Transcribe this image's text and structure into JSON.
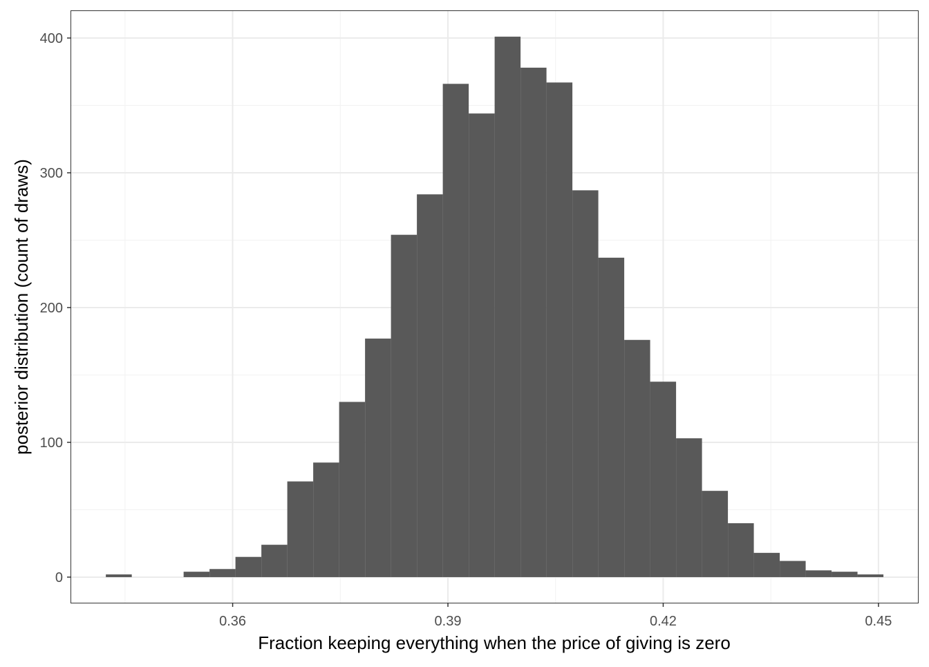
{
  "chart_data": {
    "type": "bar",
    "subtype": "histogram",
    "title": "",
    "xlabel": "Fraction keeping everything when the price of giving is zero",
    "ylabel": "posterior distribution (count of draws)",
    "xlim": [
      0.3375,
      0.4555
    ],
    "ylim": [
      -19,
      420
    ],
    "x_ticks": [
      0.36,
      0.39,
      0.42,
      0.45
    ],
    "x_tick_labels": [
      "0.36",
      "0.39",
      "0.42",
      "0.45"
    ],
    "y_ticks": [
      0,
      100,
      200,
      300,
      400
    ],
    "y_tick_labels": [
      "0",
      "100",
      "200",
      "300",
      "400"
    ],
    "bin_start": 0.34233,
    "bin_width": 0.003612,
    "values": [
      2,
      0,
      0,
      4,
      6,
      15,
      24,
      71,
      85,
      130,
      177,
      254,
      284,
      366,
      344,
      401,
      378,
      367,
      287,
      237,
      176,
      145,
      103,
      64,
      40,
      18,
      12,
      5,
      4,
      2
    ],
    "bar_color": "#595959",
    "grid": true,
    "theme": "bw",
    "legend": "none"
  }
}
